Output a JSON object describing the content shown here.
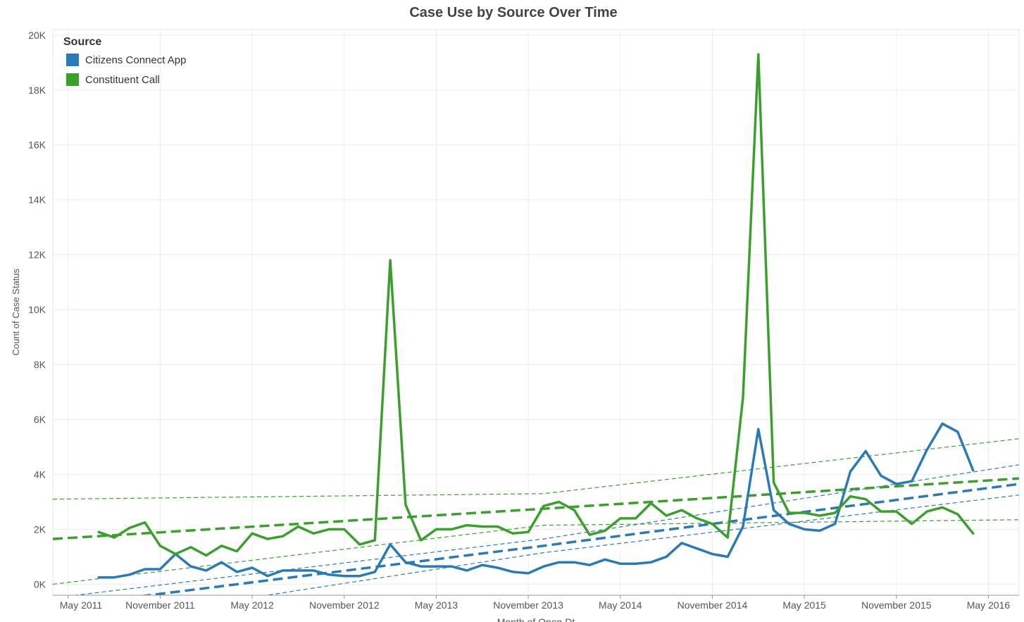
{
  "chart_data": {
    "type": "line",
    "title": "Case Use by Source Over Time",
    "x_label": "Month of Open Dt",
    "y_label": "Count of Case Status",
    "legend_title": "Source",
    "legend": "top-left",
    "grid": true,
    "xlim": [
      "2011-04",
      "2016-07"
    ],
    "ylim": [
      -400,
      20200
    ],
    "xticks": [
      {
        "value": "2011-05",
        "label": "May 2011"
      },
      {
        "value": "2011-11",
        "label": "November 2011"
      },
      {
        "value": "2012-05",
        "label": "May 2012"
      },
      {
        "value": "2012-11",
        "label": "November 2012"
      },
      {
        "value": "2013-05",
        "label": "May 2013"
      },
      {
        "value": "2013-11",
        "label": "November 2013"
      },
      {
        "value": "2014-05",
        "label": "May 2014"
      },
      {
        "value": "2014-11",
        "label": "November 2014"
      },
      {
        "value": "2015-05",
        "label": "May 2015"
      },
      {
        "value": "2015-11",
        "label": "November 2015"
      },
      {
        "value": "2016-05",
        "label": "May 2016"
      }
    ],
    "yticks": [
      {
        "value": 0,
        "label": "0K"
      },
      {
        "value": 2000,
        "label": "2K"
      },
      {
        "value": 4000,
        "label": "4K"
      },
      {
        "value": 6000,
        "label": "6K"
      },
      {
        "value": 8000,
        "label": "8K"
      },
      {
        "value": 10000,
        "label": "10K"
      },
      {
        "value": 12000,
        "label": "12K"
      },
      {
        "value": 14000,
        "label": "14K"
      },
      {
        "value": 16000,
        "label": "16K"
      },
      {
        "value": 18000,
        "label": "18K"
      },
      {
        "value": 20000,
        "label": "20K"
      }
    ],
    "x": [
      "2011-07",
      "2011-08",
      "2011-09",
      "2011-10",
      "2011-11",
      "2011-12",
      "2012-01",
      "2012-02",
      "2012-03",
      "2012-04",
      "2012-05",
      "2012-06",
      "2012-07",
      "2012-08",
      "2012-09",
      "2012-10",
      "2012-11",
      "2012-12",
      "2013-01",
      "2013-02",
      "2013-03",
      "2013-04",
      "2013-05",
      "2013-06",
      "2013-07",
      "2013-08",
      "2013-09",
      "2013-10",
      "2013-11",
      "2013-12",
      "2014-01",
      "2014-02",
      "2014-03",
      "2014-04",
      "2014-05",
      "2014-06",
      "2014-07",
      "2014-08",
      "2014-09",
      "2014-10",
      "2014-11",
      "2014-12",
      "2015-01",
      "2015-02",
      "2015-03",
      "2015-04",
      "2015-05",
      "2015-06",
      "2015-07",
      "2015-08",
      "2015-09",
      "2015-10",
      "2015-11",
      "2015-12",
      "2016-01",
      "2016-02",
      "2016-03",
      "2016-04"
    ],
    "trend_x": [
      "2011-04",
      "2013-12",
      "2016-07"
    ],
    "series": [
      {
        "name": "Citizens Connect App",
        "color": "#2a7ab8",
        "values": [
          250,
          250,
          350,
          550,
          550,
          1100,
          650,
          500,
          800,
          450,
          600,
          300,
          500,
          500,
          500,
          350,
          300,
          300,
          450,
          1450,
          800,
          650,
          650,
          650,
          500,
          700,
          600,
          450,
          400,
          650,
          800,
          800,
          700,
          900,
          750,
          750,
          800,
          1000,
          1500,
          1300,
          1100,
          1000,
          2100,
          5650,
          2700,
          2200,
          2000,
          1950,
          2200,
          4100,
          4850,
          3950,
          3650,
          3750,
          4900,
          5850,
          5550,
          4150
        ],
        "trend": {
          "line": [
            -840,
            1400,
            3650
          ],
          "lower": [
            -1600,
            1150,
            3250
          ],
          "upper": [
            -500,
            1650,
            4350
          ]
        }
      },
      {
        "name": "Constituent Call",
        "color": "#3aa02c",
        "values": [
          1900,
          1700,
          2050,
          2250,
          1400,
          1100,
          1350,
          1050,
          1400,
          1200,
          1850,
          1650,
          1750,
          2100,
          1850,
          2000,
          2000,
          1450,
          1600,
          11800,
          2900,
          1600,
          2000,
          2000,
          2150,
          2100,
          2100,
          1850,
          1900,
          2850,
          3000,
          2700,
          1800,
          1950,
          2400,
          2400,
          2950,
          2500,
          2700,
          2400,
          2200,
          1700,
          6800,
          19300,
          3700,
          2600,
          2600,
          2500,
          2600,
          3200,
          3100,
          2650,
          2650,
          2200,
          2650,
          2800,
          2550,
          1850
        ],
        "trend": {
          "line": [
            1650,
            2750,
            3850
          ],
          "lower": [
            0,
            2150,
            2350
          ],
          "upper": [
            3100,
            3300,
            5300
          ]
        }
      }
    ]
  }
}
